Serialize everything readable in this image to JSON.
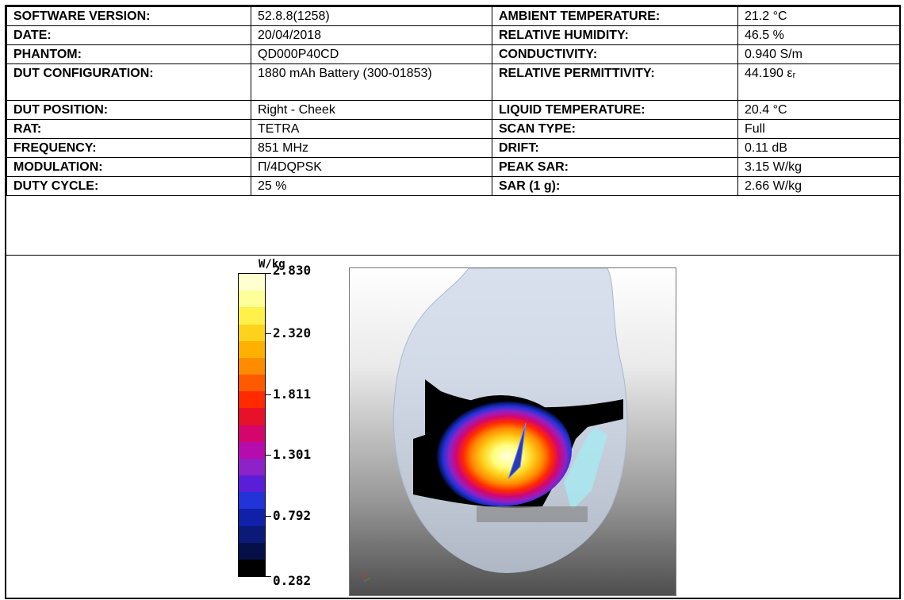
{
  "table": {
    "rows": [
      {
        "l1": "SOFTWARE VERSION:",
        "v1": "52.8.8(1258)",
        "l2": "AMBIENT TEMPERATURE:",
        "v2": "21.2 °C"
      },
      {
        "l1": "DATE:",
        "v1": "20/04/2018",
        "l2": "RELATIVE HUMIDITY:",
        "v2": "46.5 %"
      },
      {
        "l1": "PHANTOM:",
        "v1": "QD000P40CD",
        "l2": "CONDUCTIVITY:",
        "v2": "0.940 S/m"
      },
      {
        "l1": "DUT CONFIGURATION:",
        "v1": "1880 mAh Battery (300-01853)",
        "l2": "RELATIVE PERMITTIVITY:",
        "v2": "44.190 εᵣ"
      },
      {
        "l1": "DUT POSITION:",
        "v1": "Right - Cheek",
        "l2": "LIQUID TEMPERATURE:",
        "v2": "20.4 °C"
      },
      {
        "l1": "RAT:",
        "v1": "TETRA",
        "l2": "SCAN TYPE:",
        "v2": "Full"
      },
      {
        "l1": "FREQUENCY:",
        "v1": "851 MHz",
        "l2": "DRIFT:",
        "v2": "0.11 dB"
      },
      {
        "l1": "MODULATION:",
        "v1": "Π/4DQPSK",
        "l2": "PEAK SAR:",
        "v2": "3.15 W/kg"
      },
      {
        "l1": "DUTY CYCLE:",
        "v1": "25 %",
        "l2": "SAR (1 g):",
        "v2": "2.66 W/kg"
      }
    ]
  },
  "colorbar": {
    "unit": "W/kg",
    "labels": [
      "2.830",
      "2.320",
      "1.811",
      "1.301",
      "0.792",
      "0.282"
    ],
    "bands": [
      "#ffffd0",
      "#ffff99",
      "#fff04a",
      "#ffd21e",
      "#ffb000",
      "#ff8c00",
      "#ff5a00",
      "#ff2a00",
      "#e8112a",
      "#d4066e",
      "#b60cad",
      "#8c22c8",
      "#5a1ed8",
      "#2233d8",
      "#1020a8",
      "#0b1a78",
      "#061048",
      "#000000"
    ]
  }
}
